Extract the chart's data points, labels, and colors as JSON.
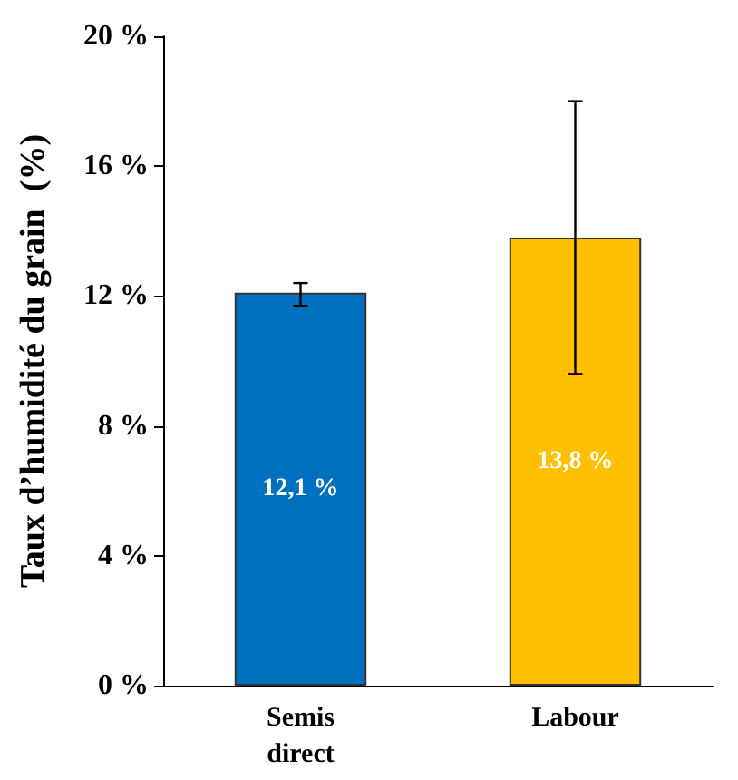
{
  "chart_data": {
    "type": "bar",
    "ylabel": "Taux d’humidité du grain  (%)",
    "categories": [
      "Semis\ndirect",
      "Labour"
    ],
    "values": [
      12.1,
      13.8
    ],
    "colors": [
      "#0070c0",
      "#ffc000"
    ],
    "errors": [
      [
        11.7,
        12.4
      ],
      [
        9.6,
        18.0
      ]
    ],
    "value_labels": [
      "12,1 %",
      "13,8 %"
    ],
    "ylim": [
      0,
      20
    ],
    "yticks": [
      {
        "value": 0,
        "label": "0 %"
      },
      {
        "value": 4,
        "label": "4 %"
      },
      {
        "value": 8,
        "label": "8 %"
      },
      {
        "value": 12,
        "label": "12 %"
      },
      {
        "value": 16,
        "label": "16 %"
      },
      {
        "value": 20,
        "label": "20 %"
      }
    ],
    "grid": false
  }
}
